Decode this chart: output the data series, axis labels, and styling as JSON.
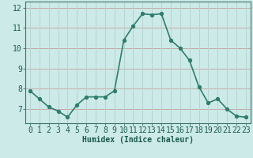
{
  "x": [
    0,
    1,
    2,
    3,
    4,
    5,
    6,
    7,
    8,
    9,
    10,
    11,
    12,
    13,
    14,
    15,
    16,
    17,
    18,
    19,
    20,
    21,
    22,
    23
  ],
  "y": [
    7.9,
    7.5,
    7.1,
    6.9,
    6.6,
    7.2,
    7.6,
    7.6,
    7.6,
    7.9,
    10.4,
    11.1,
    11.7,
    11.65,
    11.7,
    10.4,
    10.0,
    9.4,
    8.1,
    7.3,
    7.5,
    7.0,
    6.65,
    6.6
  ],
  "line_color": "#2e7d6e",
  "marker_color": "#2e7d6e",
  "bg_color": "#cceae7",
  "grid_color_h": "#c4a8a8",
  "grid_color_v": "#b8d4d0",
  "xlabel": "Humidex (Indice chaleur)",
  "ylabel_ticks": [
    7,
    8,
    9,
    10,
    11,
    12
  ],
  "xlim": [
    -0.5,
    23.5
  ],
  "ylim": [
    6.3,
    12.3
  ],
  "xtick_labels": [
    "0",
    "1",
    "2",
    "3",
    "4",
    "5",
    "6",
    "7",
    "8",
    "9",
    "10",
    "11",
    "12",
    "13",
    "14",
    "15",
    "16",
    "17",
    "18",
    "19",
    "20",
    "21",
    "22",
    "23"
  ],
  "xlabel_fontsize": 7,
  "tick_fontsize": 7,
  "label_color": "#1a5a50",
  "spine_color": "#3d7070",
  "linewidth": 1.2,
  "markersize": 2.8
}
